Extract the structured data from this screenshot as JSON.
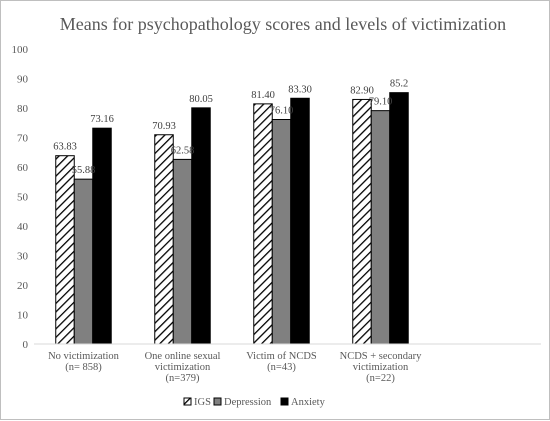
{
  "chart_data": {
    "type": "bar",
    "title": "Means for psychopathology scores and levels of victimization",
    "categories": [
      [
        "No victimization",
        "(n= 858)"
      ],
      [
        "One online sexual",
        "victimization",
        "(n=379)"
      ],
      [
        "Victim of NCDS",
        "(n=43)"
      ],
      [
        "NCDS + secondary",
        "victimization",
        "(n=22)"
      ]
    ],
    "series": [
      {
        "name": "IGS",
        "values": [
          63.83,
          70.93,
          81.4,
          82.9
        ],
        "labels": [
          "63.83",
          "70.93",
          "81.40",
          "82.90"
        ],
        "fill": "hatch"
      },
      {
        "name": "Depression",
        "values": [
          55.88,
          62.58,
          76.1,
          79.1
        ],
        "labels": [
          "55.88",
          "62.58",
          "76.10",
          "79.10"
        ],
        "fill": "#808080"
      },
      {
        "name": "Anxiety",
        "values": [
          73.16,
          80.05,
          83.3,
          85.2
        ],
        "labels": [
          "73.16",
          "80.05",
          "83.30",
          "85.2"
        ],
        "fill": "#000000"
      }
    ],
    "ylim": [
      0,
      100
    ],
    "yticks": [
      0,
      10,
      20,
      30,
      40,
      50,
      60,
      70,
      80,
      90,
      100
    ],
    "grid": false,
    "legend": "bottom",
    "xlabel": "",
    "ylabel": ""
  }
}
